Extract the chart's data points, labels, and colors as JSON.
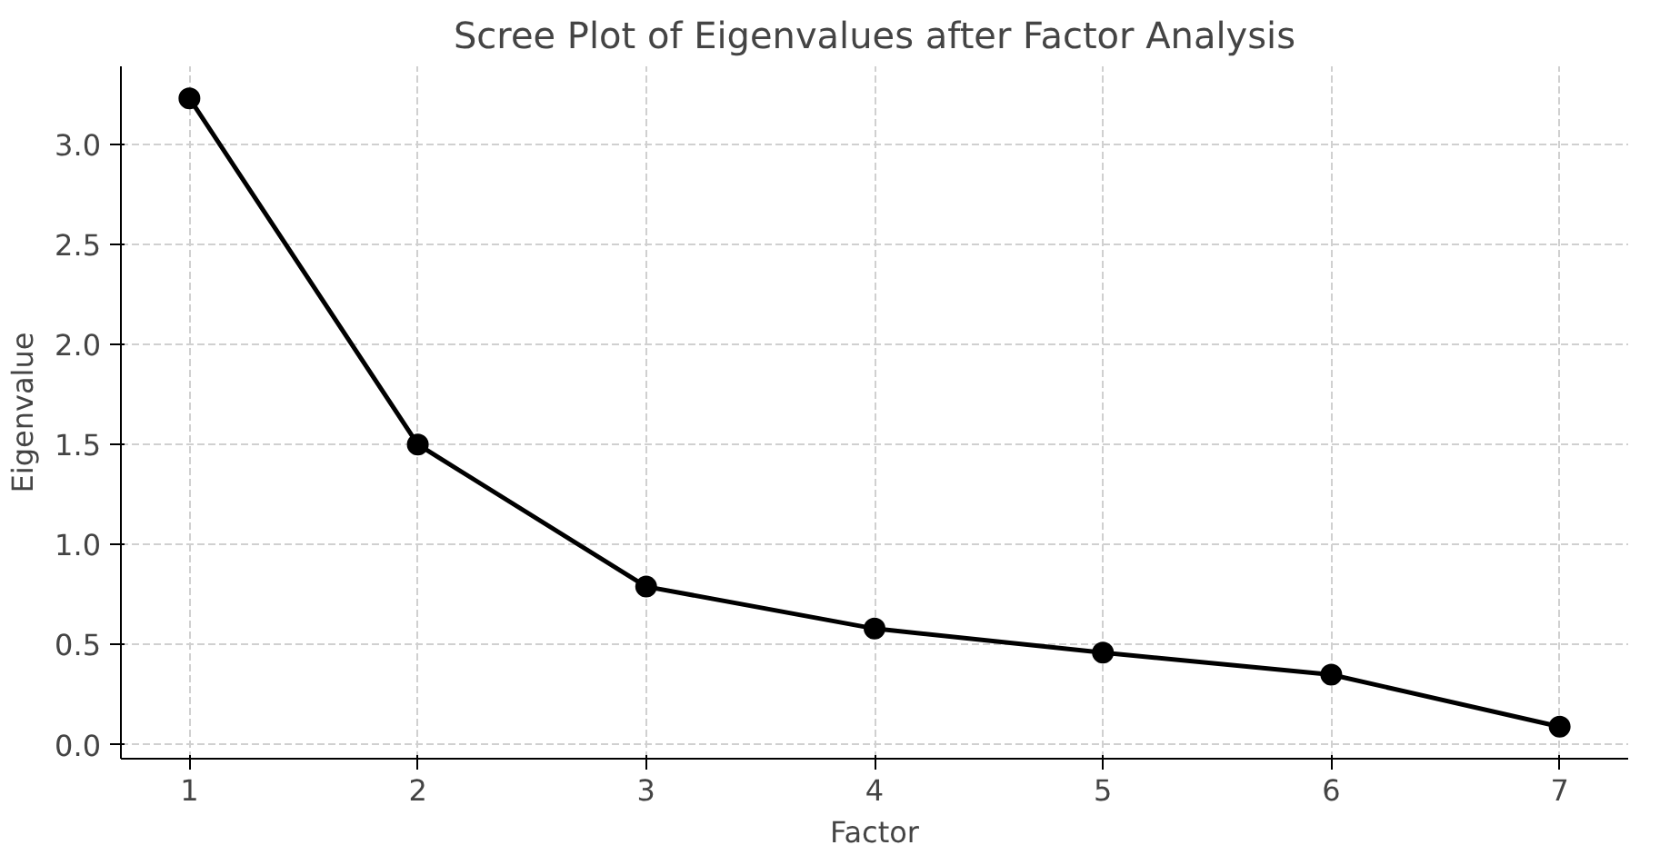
{
  "chart_data": {
    "type": "line",
    "title": "Scree Plot of Eigenvalues after Factor Analysis",
    "xlabel": "Factor",
    "ylabel": "Eigenvalue",
    "x": [
      1,
      2,
      3,
      4,
      5,
      6,
      7
    ],
    "series": [
      {
        "color": "#000000",
        "values": [
          3.23,
          1.5,
          0.79,
          0.58,
          0.46,
          0.35,
          0.09
        ]
      }
    ],
    "xlim": [
      0.7,
      7.3
    ],
    "xticks": [
      1,
      2,
      3,
      4,
      5,
      6,
      7
    ],
    "ylim": [
      -0.07,
      3.39
    ],
    "yticks": [
      {
        "value": 0,
        "label": "0.0"
      },
      {
        "value": 0.5,
        "label": "0.5"
      },
      {
        "value": 1,
        "label": "1.0"
      },
      {
        "value": 1.5,
        "label": "1.5"
      },
      {
        "value": 2,
        "label": "2.0"
      },
      {
        "value": 2.5,
        "label": "2.5"
      },
      {
        "value": 3,
        "label": "3.0"
      }
    ],
    "grid": true,
    "marker": "circle",
    "line_style": "solid"
  }
}
